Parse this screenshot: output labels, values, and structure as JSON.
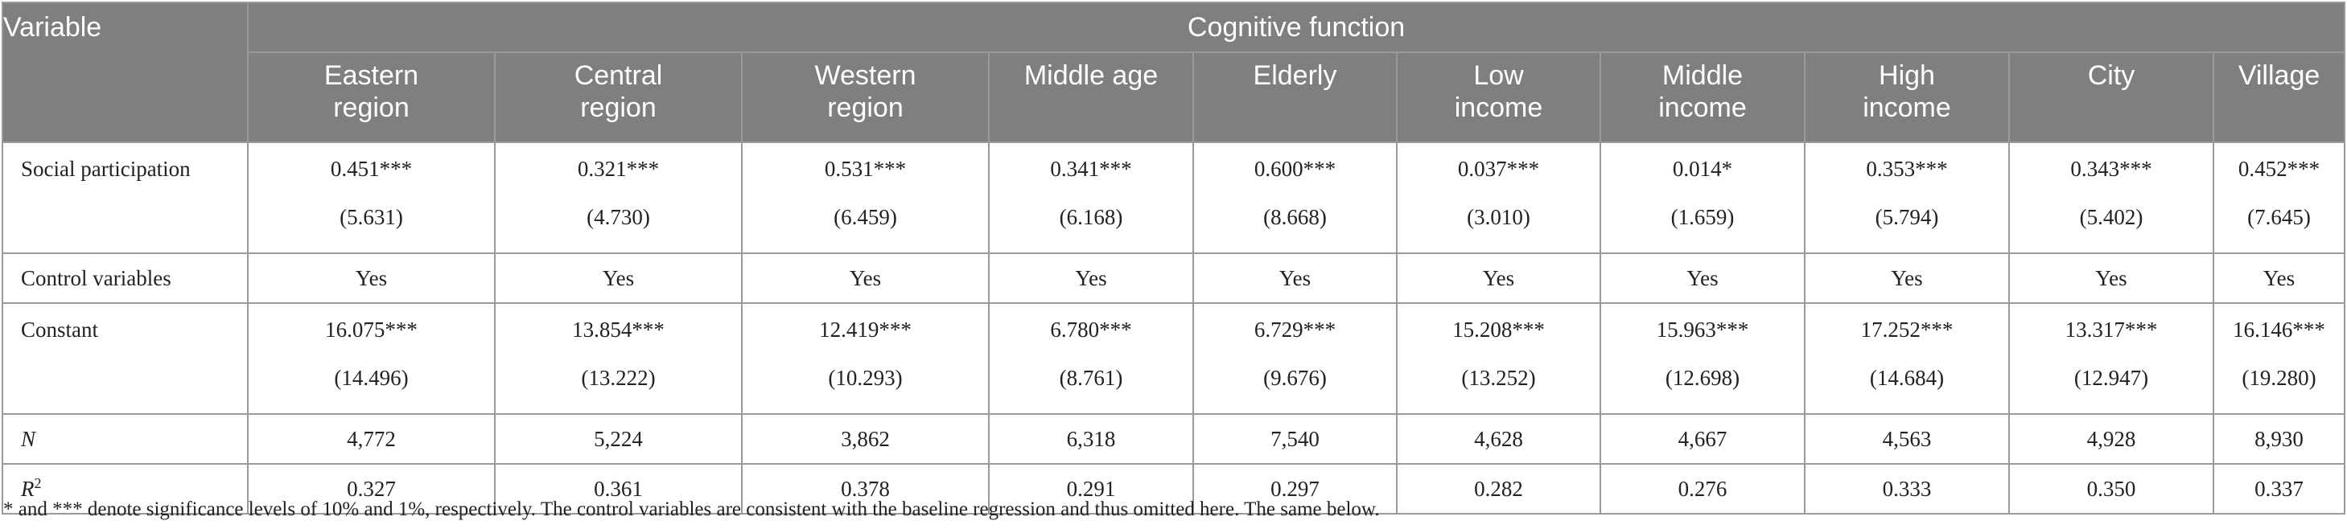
{
  "header": {
    "variable_label": "Variable",
    "group_label": "Cognitive function",
    "columns": [
      {
        "line1": "Eastern",
        "line2": "region"
      },
      {
        "line1": "Central",
        "line2": "region"
      },
      {
        "line1": "Western",
        "line2": "region"
      },
      {
        "line1": "Middle age",
        "line2": ""
      },
      {
        "line1": "Elderly",
        "line2": ""
      },
      {
        "line1": "Low",
        "line2": "income"
      },
      {
        "line1": "Middle",
        "line2": "income"
      },
      {
        "line1": "High",
        "line2": "income"
      },
      {
        "line1": "City",
        "line2": ""
      },
      {
        "line1": "Village",
        "line2": ""
      }
    ]
  },
  "rows": {
    "social": {
      "label": "Social participation",
      "coef": [
        "0.451***",
        "0.321***",
        "0.531***",
        "0.341***",
        "0.600***",
        "0.037***",
        "0.014*",
        "0.353***",
        "0.343***",
        "0.452***"
      ],
      "t": [
        "(5.631)",
        "(4.730)",
        "(6.459)",
        "(6.168)",
        "(8.668)",
        "(3.010)",
        "(1.659)",
        "(5.794)",
        "(5.402)",
        "(7.645)"
      ]
    },
    "control": {
      "label": "Control variables",
      "values": [
        "Yes",
        "Yes",
        "Yes",
        "Yes",
        "Yes",
        "Yes",
        "Yes",
        "Yes",
        "Yes",
        "Yes"
      ]
    },
    "constant": {
      "label": "Constant",
      "coef": [
        "16.075***",
        "13.854***",
        "12.419***",
        "6.780***",
        "6.729***",
        "15.208***",
        "15.963***",
        "17.252***",
        "13.317***",
        "16.146***"
      ],
      "t": [
        "(14.496)",
        "(13.222)",
        "(10.293)",
        "(8.761)",
        "(9.676)",
        "(13.252)",
        "(12.698)",
        "(14.684)",
        "(12.947)",
        "(19.280)"
      ]
    },
    "n": {
      "label": "N",
      "values": [
        "4,772",
        "5,224",
        "3,862",
        "6,318",
        "7,540",
        "4,628",
        "4,667",
        "4,563",
        "4,928",
        "8,930"
      ]
    },
    "r2": {
      "label": "R",
      "label_sup": "2",
      "values": [
        "0.327",
        "0.361",
        "0.378",
        "0.291",
        "0.297",
        "0.282",
        "0.276",
        "0.333",
        "0.350",
        "0.337"
      ]
    }
  },
  "footnote": "* and *** denote significance levels of 10% and 1%, respectively. The control variables are consistent with the baseline regression and thus omitted here. The same below."
}
